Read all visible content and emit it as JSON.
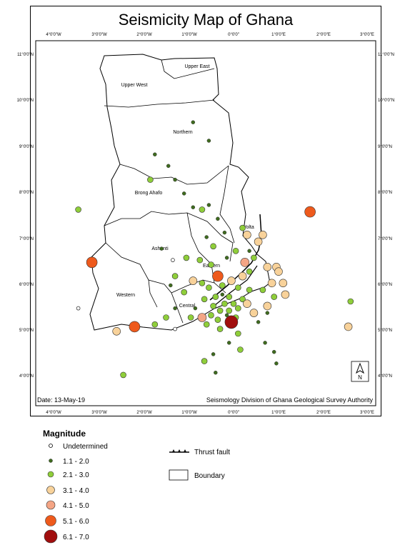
{
  "title": "Seismicity Map of Ghana",
  "date_label": "Date: 13-May-19",
  "credit": "Seismology Division of Ghana Geological Survey Authority",
  "north_label": "N",
  "lon_ticks": [
    "4°0'0\"W",
    "3°0'0\"W",
    "2°0'0\"W",
    "1°0'0\"W",
    "0°0'0\"",
    "1°0'0\"E",
    "2°0'0\"E",
    "3°0'0\"E"
  ],
  "lat_ticks": [
    "11°0'0\"N",
    "10°0'0\"N",
    "9°0'0\"N",
    "8°0'0\"N",
    "7°0'0\"N",
    "6°0'0\"N",
    "5°0'0\"N",
    "4°0'0\"N"
  ],
  "regions": [
    "Upper West",
    "Upper East",
    "Northern",
    "Brong Ahafo",
    "Volta",
    "Ashanti",
    "Eastern",
    "Western",
    "Central"
  ],
  "legend": {
    "title": "Magnitude",
    "items": [
      {
        "label": "Undetermined",
        "color": "#ffffff"
      },
      {
        "label": "1.1 - 2.0",
        "color": "#3f6b1f"
      },
      {
        "label": "2.1 - 3.0",
        "color": "#8fce3a"
      },
      {
        "label": "3.1 - 4.0",
        "color": "#f8d29a"
      },
      {
        "label": "4.1 - 5.0",
        "color": "#f4a585"
      },
      {
        "label": "5.1 - 6.0",
        "color": "#ee5a1c"
      },
      {
        "label": "6.1 - 7.0",
        "color": "#a10e0e"
      }
    ],
    "thrust_fault": "Thrust fault",
    "boundary": "Boundary"
  },
  "colors": {
    "undetermined": "#ffffff",
    "m1": "#3f6b1f",
    "m2": "#8fce3a",
    "m3": "#f8d29a",
    "m4": "#f4a585",
    "m5": "#ee5a1c",
    "m6": "#a10e0e"
  },
  "events": [
    {
      "lon": -3.45,
      "lat": 7.65,
      "mag": "m2"
    },
    {
      "lon": -3.15,
      "lat": 6.5,
      "mag": "m5"
    },
    {
      "lon": -3.45,
      "lat": 5.5,
      "mag": "undetermined"
    },
    {
      "lon": -2.6,
      "lat": 5.0,
      "mag": "m3"
    },
    {
      "lon": -2.2,
      "lat": 5.1,
      "mag": "m5"
    },
    {
      "lon": -2.45,
      "lat": 4.05,
      "mag": "m2"
    },
    {
      "lon": 1.7,
      "lat": 7.6,
      "mag": "m5"
    },
    {
      "lon": 2.55,
      "lat": 5.1,
      "mag": "m3"
    },
    {
      "lon": 2.6,
      "lat": 5.65,
      "mag": "m2"
    },
    {
      "lon": -0.05,
      "lat": 5.2,
      "mag": "m6"
    },
    {
      "lon": -0.35,
      "lat": 6.2,
      "mag": "m5"
    },
    {
      "lon": 0.25,
      "lat": 6.5,
      "mag": "m4"
    },
    {
      "lon": -0.7,
      "lat": 5.3,
      "mag": "m4"
    },
    {
      "lon": -0.9,
      "lat": 9.55,
      "mag": "m1"
    },
    {
      "lon": -0.55,
      "lat": 9.15,
      "mag": "m1"
    },
    {
      "lon": -1.75,
      "lat": 8.85,
      "mag": "m1"
    },
    {
      "lon": -1.85,
      "lat": 8.3,
      "mag": "m2"
    },
    {
      "lon": -1.45,
      "lat": 8.6,
      "mag": "m1"
    },
    {
      "lon": -1.3,
      "lat": 8.3,
      "mag": "m1"
    },
    {
      "lon": -1.1,
      "lat": 8.0,
      "mag": "m1"
    },
    {
      "lon": -0.55,
      "lat": 7.75,
      "mag": "m1"
    },
    {
      "lon": -0.7,
      "lat": 7.65,
      "mag": "m2"
    },
    {
      "lon": -0.9,
      "lat": 7.7,
      "mag": "m1"
    },
    {
      "lon": -0.35,
      "lat": 7.45,
      "mag": "m1"
    },
    {
      "lon": -1.6,
      "lat": 6.8,
      "mag": "m1"
    },
    {
      "lon": -1.05,
      "lat": 6.6,
      "mag": "m2"
    },
    {
      "lon": -1.35,
      "lat": 6.55,
      "mag": "undetermined"
    },
    {
      "lon": -0.6,
      "lat": 7.05,
      "mag": "m1"
    },
    {
      "lon": -0.45,
      "lat": 6.85,
      "mag": "m2"
    },
    {
      "lon": -0.2,
      "lat": 7.15,
      "mag": "m1"
    },
    {
      "lon": 0.2,
      "lat": 7.25,
      "mag": "m2"
    },
    {
      "lon": 0.3,
      "lat": 7.1,
      "mag": "m3"
    },
    {
      "lon": 0.65,
      "lat": 7.1,
      "mag": "m3"
    },
    {
      "lon": 0.55,
      "lat": 6.95,
      "mag": "m3"
    },
    {
      "lon": 0.45,
      "lat": 6.6,
      "mag": "m2"
    },
    {
      "lon": 0.75,
      "lat": 6.4,
      "mag": "m3"
    },
    {
      "lon": 0.95,
      "lat": 6.4,
      "mag": "m3"
    },
    {
      "lon": 1.0,
      "lat": 6.3,
      "mag": "m3"
    },
    {
      "lon": 0.85,
      "lat": 6.05,
      "mag": "m3"
    },
    {
      "lon": 1.1,
      "lat": 6.05,
      "mag": "m3"
    },
    {
      "lon": 1.15,
      "lat": 5.8,
      "mag": "m3"
    },
    {
      "lon": 0.9,
      "lat": 5.75,
      "mag": "m2"
    },
    {
      "lon": 0.65,
      "lat": 5.9,
      "mag": "m2"
    },
    {
      "lon": 0.45,
      "lat": 5.4,
      "mag": "m3"
    },
    {
      "lon": 0.75,
      "lat": 5.55,
      "mag": "m3"
    },
    {
      "lon": -0.9,
      "lat": 6.1,
      "mag": "m3"
    },
    {
      "lon": -1.3,
      "lat": 6.2,
      "mag": "m2"
    },
    {
      "lon": -1.4,
      "lat": 6.0,
      "mag": "m1"
    },
    {
      "lon": -1.1,
      "lat": 5.85,
      "mag": "m2"
    },
    {
      "lon": -1.3,
      "lat": 5.5,
      "mag": "m1"
    },
    {
      "lon": -1.5,
      "lat": 5.3,
      "mag": "m2"
    },
    {
      "lon": -1.3,
      "lat": 5.05,
      "mag": "undetermined"
    },
    {
      "lon": -1.75,
      "lat": 5.15,
      "mag": "m2"
    },
    {
      "lon": -0.85,
      "lat": 5.5,
      "mag": "m1"
    },
    {
      "lon": -0.65,
      "lat": 5.7,
      "mag": "m2"
    },
    {
      "lon": -0.45,
      "lat": 5.55,
      "mag": "m2"
    },
    {
      "lon": -0.3,
      "lat": 5.45,
      "mag": "m2"
    },
    {
      "lon": -0.2,
      "lat": 5.6,
      "mag": "m2"
    },
    {
      "lon": -0.1,
      "lat": 5.45,
      "mag": "m2"
    },
    {
      "lon": 0.0,
      "lat": 5.6,
      "mag": "m2"
    },
    {
      "lon": 0.1,
      "lat": 5.5,
      "mag": "m2"
    },
    {
      "lon": -0.5,
      "lat": 5.35,
      "mag": "m2"
    },
    {
      "lon": -0.35,
      "lat": 5.25,
      "mag": "m2"
    },
    {
      "lon": -0.15,
      "lat": 5.35,
      "mag": "m1"
    },
    {
      "lon": 0.05,
      "lat": 5.3,
      "mag": "m2"
    },
    {
      "lon": -0.6,
      "lat": 5.15,
      "mag": "m2"
    },
    {
      "lon": -0.4,
      "lat": 5.75,
      "mag": "m2"
    },
    {
      "lon": -0.25,
      "lat": 5.8,
      "mag": "m1"
    },
    {
      "lon": -0.1,
      "lat": 5.75,
      "mag": "m2"
    },
    {
      "lon": 0.2,
      "lat": 5.7,
      "mag": "m2"
    },
    {
      "lon": 0.3,
      "lat": 5.6,
      "mag": "m3"
    },
    {
      "lon": 0.35,
      "lat": 5.9,
      "mag": "m2"
    },
    {
      "lon": -0.55,
      "lat": 5.95,
      "mag": "m2"
    },
    {
      "lon": -0.7,
      "lat": 6.05,
      "mag": "m2"
    },
    {
      "lon": -0.25,
      "lat": 6.0,
      "mag": "m2"
    },
    {
      "lon": -0.05,
      "lat": 6.1,
      "mag": "m3"
    },
    {
      "lon": 0.1,
      "lat": 5.95,
      "mag": "m2"
    },
    {
      "lon": 0.2,
      "lat": 6.2,
      "mag": "m3"
    },
    {
      "lon": 0.35,
      "lat": 6.3,
      "mag": "m2"
    },
    {
      "lon": -0.5,
      "lat": 6.45,
      "mag": "m2"
    },
    {
      "lon": -0.75,
      "lat": 6.55,
      "mag": "m2"
    },
    {
      "lon": -0.15,
      "lat": 6.6,
      "mag": "m1"
    },
    {
      "lon": 0.05,
      "lat": 6.75,
      "mag": "m2"
    },
    {
      "lon": 0.35,
      "lat": 6.75,
      "mag": "m1"
    },
    {
      "lon": -0.95,
      "lat": 5.3,
      "mag": "m2"
    },
    {
      "lon": -0.3,
      "lat": 5.05,
      "mag": "m2"
    },
    {
      "lon": 0.1,
      "lat": 4.95,
      "mag": "m2"
    },
    {
      "lon": -0.1,
      "lat": 4.75,
      "mag": "m1"
    },
    {
      "lon": 0.15,
      "lat": 4.6,
      "mag": "m2"
    },
    {
      "lon": -0.45,
      "lat": 4.5,
      "mag": "m1"
    },
    {
      "lon": -0.65,
      "lat": 4.35,
      "mag": "m2"
    },
    {
      "lon": -0.4,
      "lat": 4.1,
      "mag": "m1"
    },
    {
      "lon": 0.7,
      "lat": 4.75,
      "mag": "m1"
    },
    {
      "lon": 0.9,
      "lat": 4.55,
      "mag": "m1"
    },
    {
      "lon": 0.95,
      "lat": 4.3,
      "mag": "m1"
    },
    {
      "lon": 0.55,
      "lat": 5.2,
      "mag": "m1"
    },
    {
      "lon": 0.75,
      "lat": 5.4,
      "mag": "m1"
    }
  ]
}
